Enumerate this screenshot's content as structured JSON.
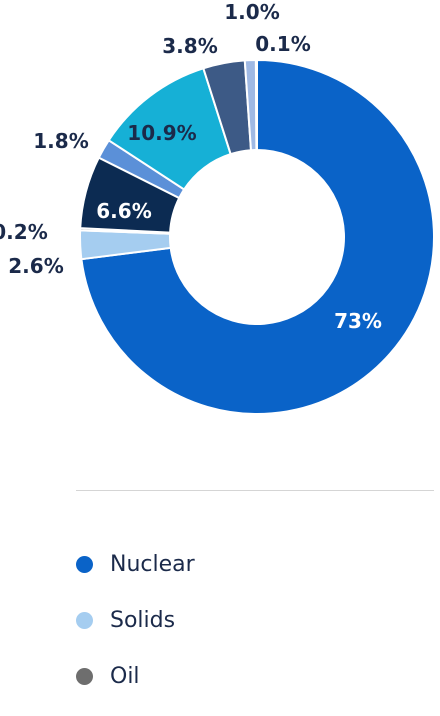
{
  "chart_data": {
    "type": "donut",
    "title": "",
    "slices": [
      {
        "name": "Nuclear",
        "value": 73.0,
        "label": "73%",
        "color": "#0a63c8"
      },
      {
        "name": "Solids",
        "value": 2.6,
        "label": "2.6%",
        "color": "#a5cdf0"
      },
      {
        "name": "Oil",
        "value": 0.2,
        "label": "0.2%",
        "color": "#6e6e6e"
      },
      {
        "name": "",
        "value": 6.6,
        "label": "6.6%",
        "color": "#0c2b52"
      },
      {
        "name": "",
        "value": 1.8,
        "label": "1.8%",
        "color": "#5b90d8"
      },
      {
        "name": "",
        "value": 10.9,
        "label": "10.9%",
        "color": "#16b0d6"
      },
      {
        "name": "",
        "value": 3.8,
        "label": "3.8%",
        "color": "#3d5a86"
      },
      {
        "name": "",
        "value": 1.0,
        "label": "1.0%",
        "color": "#9fb9e4"
      },
      {
        "name": "",
        "value": 0.1,
        "label": "0.1%",
        "color": "#c9d9ee"
      }
    ],
    "legend": {
      "placement": "bottom",
      "items": [
        {
          "label": "Nuclear",
          "color": "#0a63c8"
        },
        {
          "label": "Solids",
          "color": "#a5cdf0"
        },
        {
          "label": "Oil",
          "color": "#6e6e6e"
        }
      ]
    }
  }
}
